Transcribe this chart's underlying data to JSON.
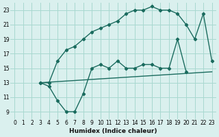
{
  "xlabel": "Humidex (Indice chaleur)",
  "bg_color": "#daf0ee",
  "grid_color": "#a8d8d0",
  "line_color": "#1a6b5e",
  "line_upper": {
    "x": [
      3,
      4,
      5,
      6,
      7,
      8,
      9,
      10,
      11,
      12,
      13,
      14,
      15,
      16,
      17,
      18,
      19,
      20,
      21,
      22,
      23
    ],
    "y": [
      13,
      13,
      16,
      17.5,
      18,
      19,
      20,
      20.5,
      21,
      21.5,
      22.5,
      23,
      23,
      23.5,
      23,
      23,
      22.5,
      21,
      19,
      22.5,
      16
    ]
  },
  "line_lower": {
    "x": [
      3,
      4,
      5,
      6,
      7,
      8,
      9,
      10,
      11,
      12,
      13,
      14,
      15,
      16,
      17,
      18,
      19,
      20
    ],
    "y": [
      13,
      12.5,
      10.5,
      9,
      9,
      11.5,
      15,
      15.5,
      15,
      16,
      15,
      15,
      15.5,
      15.5,
      15,
      15,
      19,
      14.5
    ]
  },
  "line_flat": {
    "x": [
      3,
      23
    ],
    "y": [
      13,
      14.5
    ]
  },
  "xlim": [
    -0.5,
    23.5
  ],
  "ylim": [
    8,
    24
  ],
  "xticks": [
    0,
    1,
    2,
    3,
    4,
    5,
    6,
    7,
    8,
    9,
    10,
    11,
    12,
    13,
    14,
    15,
    16,
    17,
    18,
    19,
    20,
    21,
    22,
    23
  ],
  "yticks": [
    9,
    11,
    13,
    15,
    17,
    19,
    21,
    23
  ]
}
